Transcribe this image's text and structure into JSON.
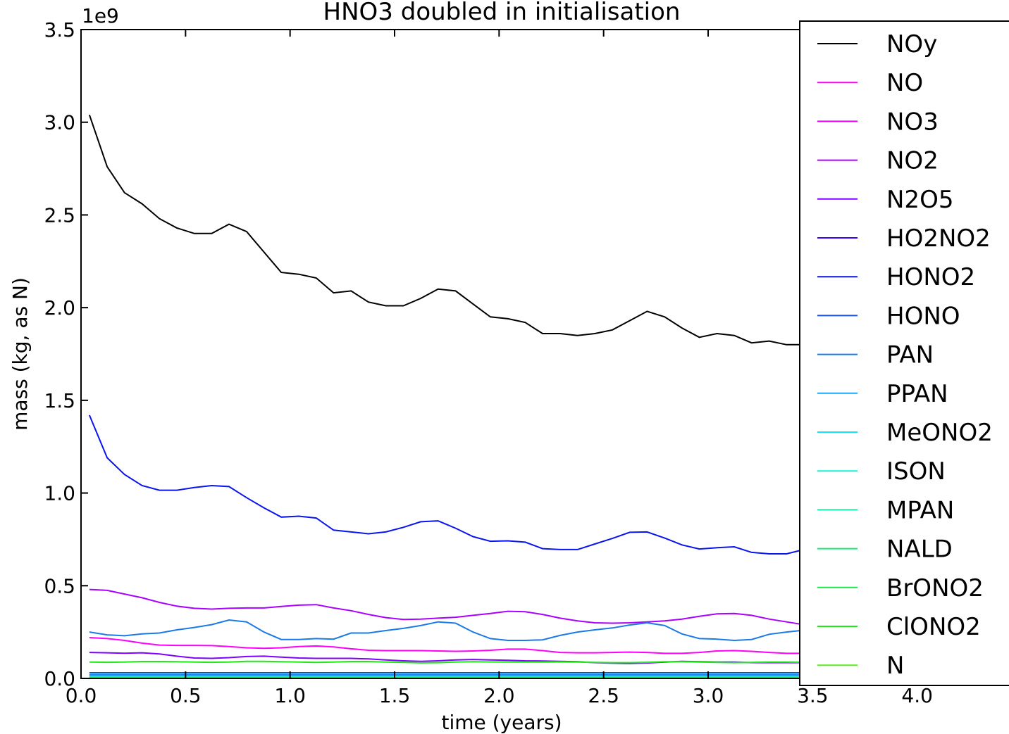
{
  "chart_data": {
    "type": "line",
    "title": "HNO3 doubled in initialisation",
    "xlabel": "time (years)",
    "ylabel": "mass (kg, as N)",
    "y_multiplier_label": "1e9",
    "xlim": [
      0.0,
      4.5
    ],
    "ylim": [
      0.0,
      3.5
    ],
    "x_ticks": [
      0.0,
      0.5,
      1.0,
      1.5,
      2.0,
      2.5,
      3.0,
      3.5,
      4.0
    ],
    "x_tick_labels": [
      "0.0",
      "0.5",
      "1.0",
      "1.5",
      "2.0",
      "2.5",
      "3.0",
      "3.5",
      "4.0"
    ],
    "y_ticks": [
      0.0,
      0.5,
      1.0,
      1.5,
      2.0,
      2.5,
      3.0,
      3.5
    ],
    "y_tick_labels": [
      "0.0",
      "0.5",
      "1.0",
      "1.5",
      "2.0",
      "2.5",
      "3.0",
      "3.5"
    ],
    "grid": false,
    "legend_position": "right",
    "x": [
      0.04,
      0.125,
      0.208,
      0.292,
      0.375,
      0.458,
      0.542,
      0.625,
      0.708,
      0.792,
      0.875,
      0.958,
      1.042,
      1.125,
      1.208,
      1.292,
      1.375,
      1.458,
      1.542,
      1.625,
      1.708,
      1.792,
      1.875,
      1.958,
      2.042,
      2.125,
      2.208,
      2.292,
      2.375,
      2.458,
      2.542,
      2.625,
      2.708,
      2.792,
      2.875,
      2.958,
      3.042,
      3.125,
      3.208,
      3.292,
      3.375,
      3.458
    ],
    "series": [
      {
        "name": "NOy",
        "color": "#000000",
        "values": [
          3.04,
          2.76,
          2.62,
          2.56,
          2.48,
          2.43,
          2.4,
          2.4,
          2.45,
          2.41,
          2.3,
          2.19,
          2.18,
          2.16,
          2.08,
          2.09,
          2.03,
          2.01,
          2.01,
          2.05,
          2.1,
          2.09,
          2.02,
          1.95,
          1.94,
          1.92,
          1.86,
          1.86,
          1.85,
          1.86,
          1.88,
          1.93,
          1.98,
          1.95,
          1.89,
          1.84,
          1.86,
          1.85,
          1.81,
          1.82,
          1.8,
          1.8
        ]
      },
      {
        "name": "NO",
        "color": "#ff00ff",
        "values": [
          0.22,
          0.215,
          0.205,
          0.19,
          0.18,
          0.178,
          0.178,
          0.177,
          0.172,
          0.165,
          0.162,
          0.165,
          0.172,
          0.175,
          0.17,
          0.16,
          0.152,
          0.15,
          0.15,
          0.15,
          0.148,
          0.146,
          0.148,
          0.152,
          0.158,
          0.158,
          0.15,
          0.14,
          0.138,
          0.138,
          0.14,
          0.142,
          0.14,
          0.135,
          0.135,
          0.14,
          0.148,
          0.15,
          0.146,
          0.14,
          0.135,
          0.135
        ]
      },
      {
        "name": "NO3",
        "color": "#ea00ff",
        "values": [
          0.01,
          0.01,
          0.01,
          0.01,
          0.01,
          0.01,
          0.01,
          0.01,
          0.01,
          0.01,
          0.01,
          0.01,
          0.01,
          0.01,
          0.01,
          0.01,
          0.01,
          0.01,
          0.01,
          0.01,
          0.01,
          0.01,
          0.01,
          0.01,
          0.01,
          0.01,
          0.01,
          0.01,
          0.01,
          0.01,
          0.01,
          0.01,
          0.01,
          0.01,
          0.01,
          0.01,
          0.01,
          0.01,
          0.01,
          0.01,
          0.01,
          0.01
        ]
      },
      {
        "name": "NO2",
        "color": "#aa00ff",
        "values": [
          0.48,
          0.475,
          0.455,
          0.435,
          0.41,
          0.39,
          0.378,
          0.374,
          0.378,
          0.38,
          0.38,
          0.388,
          0.395,
          0.398,
          0.38,
          0.365,
          0.345,
          0.328,
          0.318,
          0.32,
          0.325,
          0.33,
          0.34,
          0.35,
          0.362,
          0.36,
          0.345,
          0.325,
          0.31,
          0.3,
          0.298,
          0.3,
          0.305,
          0.31,
          0.32,
          0.335,
          0.348,
          0.35,
          0.34,
          0.32,
          0.305,
          0.29
        ]
      },
      {
        "name": "N2O5",
        "color": "#8000ff",
        "values": [
          0.14,
          0.138,
          0.136,
          0.138,
          0.132,
          0.12,
          0.11,
          0.108,
          0.112,
          0.118,
          0.12,
          0.115,
          0.11,
          0.108,
          0.108,
          0.108,
          0.105,
          0.1,
          0.095,
          0.092,
          0.095,
          0.1,
          0.102,
          0.1,
          0.098,
          0.095,
          0.094,
          0.092,
          0.09,
          0.085,
          0.082,
          0.08,
          0.083,
          0.088,
          0.092,
          0.09,
          0.088,
          0.088,
          0.085,
          0.085,
          0.085,
          0.085
        ]
      },
      {
        "name": "HO2NO2",
        "color": "#3a00ff",
        "values": [
          0.03,
          0.03,
          0.03,
          0.03,
          0.03,
          0.03,
          0.03,
          0.03,
          0.03,
          0.03,
          0.03,
          0.03,
          0.03,
          0.03,
          0.03,
          0.03,
          0.03,
          0.03,
          0.03,
          0.03,
          0.03,
          0.03,
          0.03,
          0.03,
          0.03,
          0.03,
          0.03,
          0.03,
          0.03,
          0.03,
          0.03,
          0.03,
          0.03,
          0.03,
          0.03,
          0.03,
          0.03,
          0.03,
          0.03,
          0.03,
          0.03,
          0.03
        ]
      },
      {
        "name": "HONO2",
        "color": "#0a14ef",
        "values": [
          1.42,
          1.19,
          1.1,
          1.04,
          1.015,
          1.015,
          1.03,
          1.04,
          1.035,
          0.975,
          0.92,
          0.87,
          0.875,
          0.865,
          0.8,
          0.79,
          0.78,
          0.79,
          0.815,
          0.845,
          0.85,
          0.81,
          0.765,
          0.74,
          0.742,
          0.735,
          0.7,
          0.695,
          0.695,
          0.725,
          0.755,
          0.788,
          0.79,
          0.757,
          0.72,
          0.698,
          0.705,
          0.71,
          0.68,
          0.672,
          0.672,
          0.695
        ]
      },
      {
        "name": "HONO",
        "color": "#1a52e8",
        "values": [
          0.02,
          0.02,
          0.02,
          0.02,
          0.02,
          0.02,
          0.02,
          0.02,
          0.02,
          0.02,
          0.02,
          0.02,
          0.02,
          0.02,
          0.02,
          0.02,
          0.02,
          0.02,
          0.02,
          0.02,
          0.02,
          0.02,
          0.02,
          0.02,
          0.02,
          0.02,
          0.02,
          0.02,
          0.02,
          0.02,
          0.02,
          0.02,
          0.02,
          0.02,
          0.02,
          0.02,
          0.02,
          0.02,
          0.02,
          0.02,
          0.02,
          0.02
        ]
      },
      {
        "name": "PAN",
        "color": "#1a7ae8",
        "values": [
          0.25,
          0.235,
          0.23,
          0.24,
          0.245,
          0.262,
          0.275,
          0.29,
          0.315,
          0.305,
          0.25,
          0.21,
          0.21,
          0.215,
          0.212,
          0.245,
          0.245,
          0.258,
          0.27,
          0.285,
          0.305,
          0.298,
          0.25,
          0.215,
          0.205,
          0.205,
          0.208,
          0.232,
          0.25,
          0.262,
          0.272,
          0.288,
          0.3,
          0.285,
          0.24,
          0.215,
          0.212,
          0.205,
          0.21,
          0.238,
          0.25,
          0.26
        ]
      },
      {
        "name": "PPAN",
        "color": "#1aa8f0",
        "values": [
          0.015,
          0.015,
          0.015,
          0.015,
          0.015,
          0.015,
          0.015,
          0.015,
          0.015,
          0.015,
          0.015,
          0.015,
          0.015,
          0.015,
          0.015,
          0.015,
          0.015,
          0.015,
          0.015,
          0.015,
          0.015,
          0.015,
          0.015,
          0.015,
          0.015,
          0.015,
          0.015,
          0.015,
          0.015,
          0.015,
          0.015,
          0.015,
          0.015,
          0.015,
          0.015,
          0.015,
          0.015,
          0.015,
          0.015,
          0.015,
          0.015,
          0.015
        ]
      },
      {
        "name": "MeONO2",
        "color": "#1ae0f0",
        "values": [
          0.025,
          0.025,
          0.025,
          0.025,
          0.025,
          0.025,
          0.025,
          0.025,
          0.025,
          0.025,
          0.025,
          0.025,
          0.025,
          0.025,
          0.025,
          0.025,
          0.025,
          0.025,
          0.025,
          0.025,
          0.025,
          0.025,
          0.025,
          0.025,
          0.025,
          0.025,
          0.025,
          0.025,
          0.025,
          0.025,
          0.025,
          0.025,
          0.025,
          0.025,
          0.025,
          0.025,
          0.025,
          0.025,
          0.025,
          0.025,
          0.025,
          0.025
        ]
      },
      {
        "name": "ISON",
        "color": "#1af0d6",
        "values": [
          0.008,
          0.008,
          0.008,
          0.008,
          0.008,
          0.008,
          0.008,
          0.008,
          0.008,
          0.008,
          0.008,
          0.008,
          0.008,
          0.008,
          0.008,
          0.008,
          0.008,
          0.008,
          0.008,
          0.008,
          0.008,
          0.008,
          0.008,
          0.008,
          0.008,
          0.008,
          0.008,
          0.008,
          0.008,
          0.008,
          0.008,
          0.008,
          0.008,
          0.008,
          0.008,
          0.008,
          0.008,
          0.008,
          0.008,
          0.008,
          0.008,
          0.008
        ]
      },
      {
        "name": "MPAN",
        "color": "#1af0a8",
        "values": [
          0.005,
          0.005,
          0.005,
          0.005,
          0.005,
          0.005,
          0.005,
          0.005,
          0.005,
          0.005,
          0.005,
          0.005,
          0.005,
          0.005,
          0.005,
          0.005,
          0.005,
          0.005,
          0.005,
          0.005,
          0.005,
          0.005,
          0.005,
          0.005,
          0.005,
          0.005,
          0.005,
          0.005,
          0.005,
          0.005,
          0.005,
          0.005,
          0.005,
          0.005,
          0.005,
          0.005,
          0.005,
          0.005,
          0.005,
          0.005,
          0.005,
          0.005
        ]
      },
      {
        "name": "NALD",
        "color": "#1ae87a",
        "values": [
          0.003,
          0.003,
          0.003,
          0.003,
          0.003,
          0.003,
          0.003,
          0.003,
          0.003,
          0.003,
          0.003,
          0.003,
          0.003,
          0.003,
          0.003,
          0.003,
          0.003,
          0.003,
          0.003,
          0.003,
          0.003,
          0.003,
          0.003,
          0.003,
          0.003,
          0.003,
          0.003,
          0.003,
          0.003,
          0.003,
          0.003,
          0.003,
          0.003,
          0.003,
          0.003,
          0.003,
          0.003,
          0.003,
          0.003,
          0.003,
          0.003,
          0.003
        ]
      },
      {
        "name": "BrONO2",
        "color": "#1ae84e",
        "values": [
          0.002,
          0.002,
          0.002,
          0.002,
          0.002,
          0.002,
          0.002,
          0.002,
          0.002,
          0.002,
          0.002,
          0.002,
          0.002,
          0.002,
          0.002,
          0.002,
          0.002,
          0.002,
          0.002,
          0.002,
          0.002,
          0.002,
          0.002,
          0.002,
          0.002,
          0.002,
          0.002,
          0.002,
          0.002,
          0.002,
          0.002,
          0.002,
          0.002,
          0.002,
          0.002,
          0.002,
          0.002,
          0.002,
          0.002,
          0.002,
          0.002,
          0.002
        ]
      },
      {
        "name": "ClONO2",
        "color": "#22e81a",
        "values": [
          0.088,
          0.087,
          0.088,
          0.091,
          0.091,
          0.09,
          0.088,
          0.087,
          0.088,
          0.092,
          0.092,
          0.09,
          0.088,
          0.086,
          0.088,
          0.091,
          0.091,
          0.088,
          0.086,
          0.084,
          0.085,
          0.088,
          0.09,
          0.089,
          0.088,
          0.088,
          0.088,
          0.089,
          0.088,
          0.086,
          0.085,
          0.085,
          0.087,
          0.09,
          0.09,
          0.088,
          0.086,
          0.085,
          0.086,
          0.088,
          0.088,
          0.086
        ]
      },
      {
        "name": "N",
        "color": "#5aef1a",
        "values": [
          0.001,
          0.001,
          0.001,
          0.001,
          0.001,
          0.001,
          0.001,
          0.001,
          0.001,
          0.001,
          0.001,
          0.001,
          0.001,
          0.001,
          0.001,
          0.001,
          0.001,
          0.001,
          0.001,
          0.001,
          0.001,
          0.001,
          0.001,
          0.001,
          0.001,
          0.001,
          0.001,
          0.001,
          0.001,
          0.001,
          0.001,
          0.001,
          0.001,
          0.001,
          0.001,
          0.001,
          0.001,
          0.001,
          0.001,
          0.001,
          0.001,
          0.001
        ]
      }
    ]
  }
}
